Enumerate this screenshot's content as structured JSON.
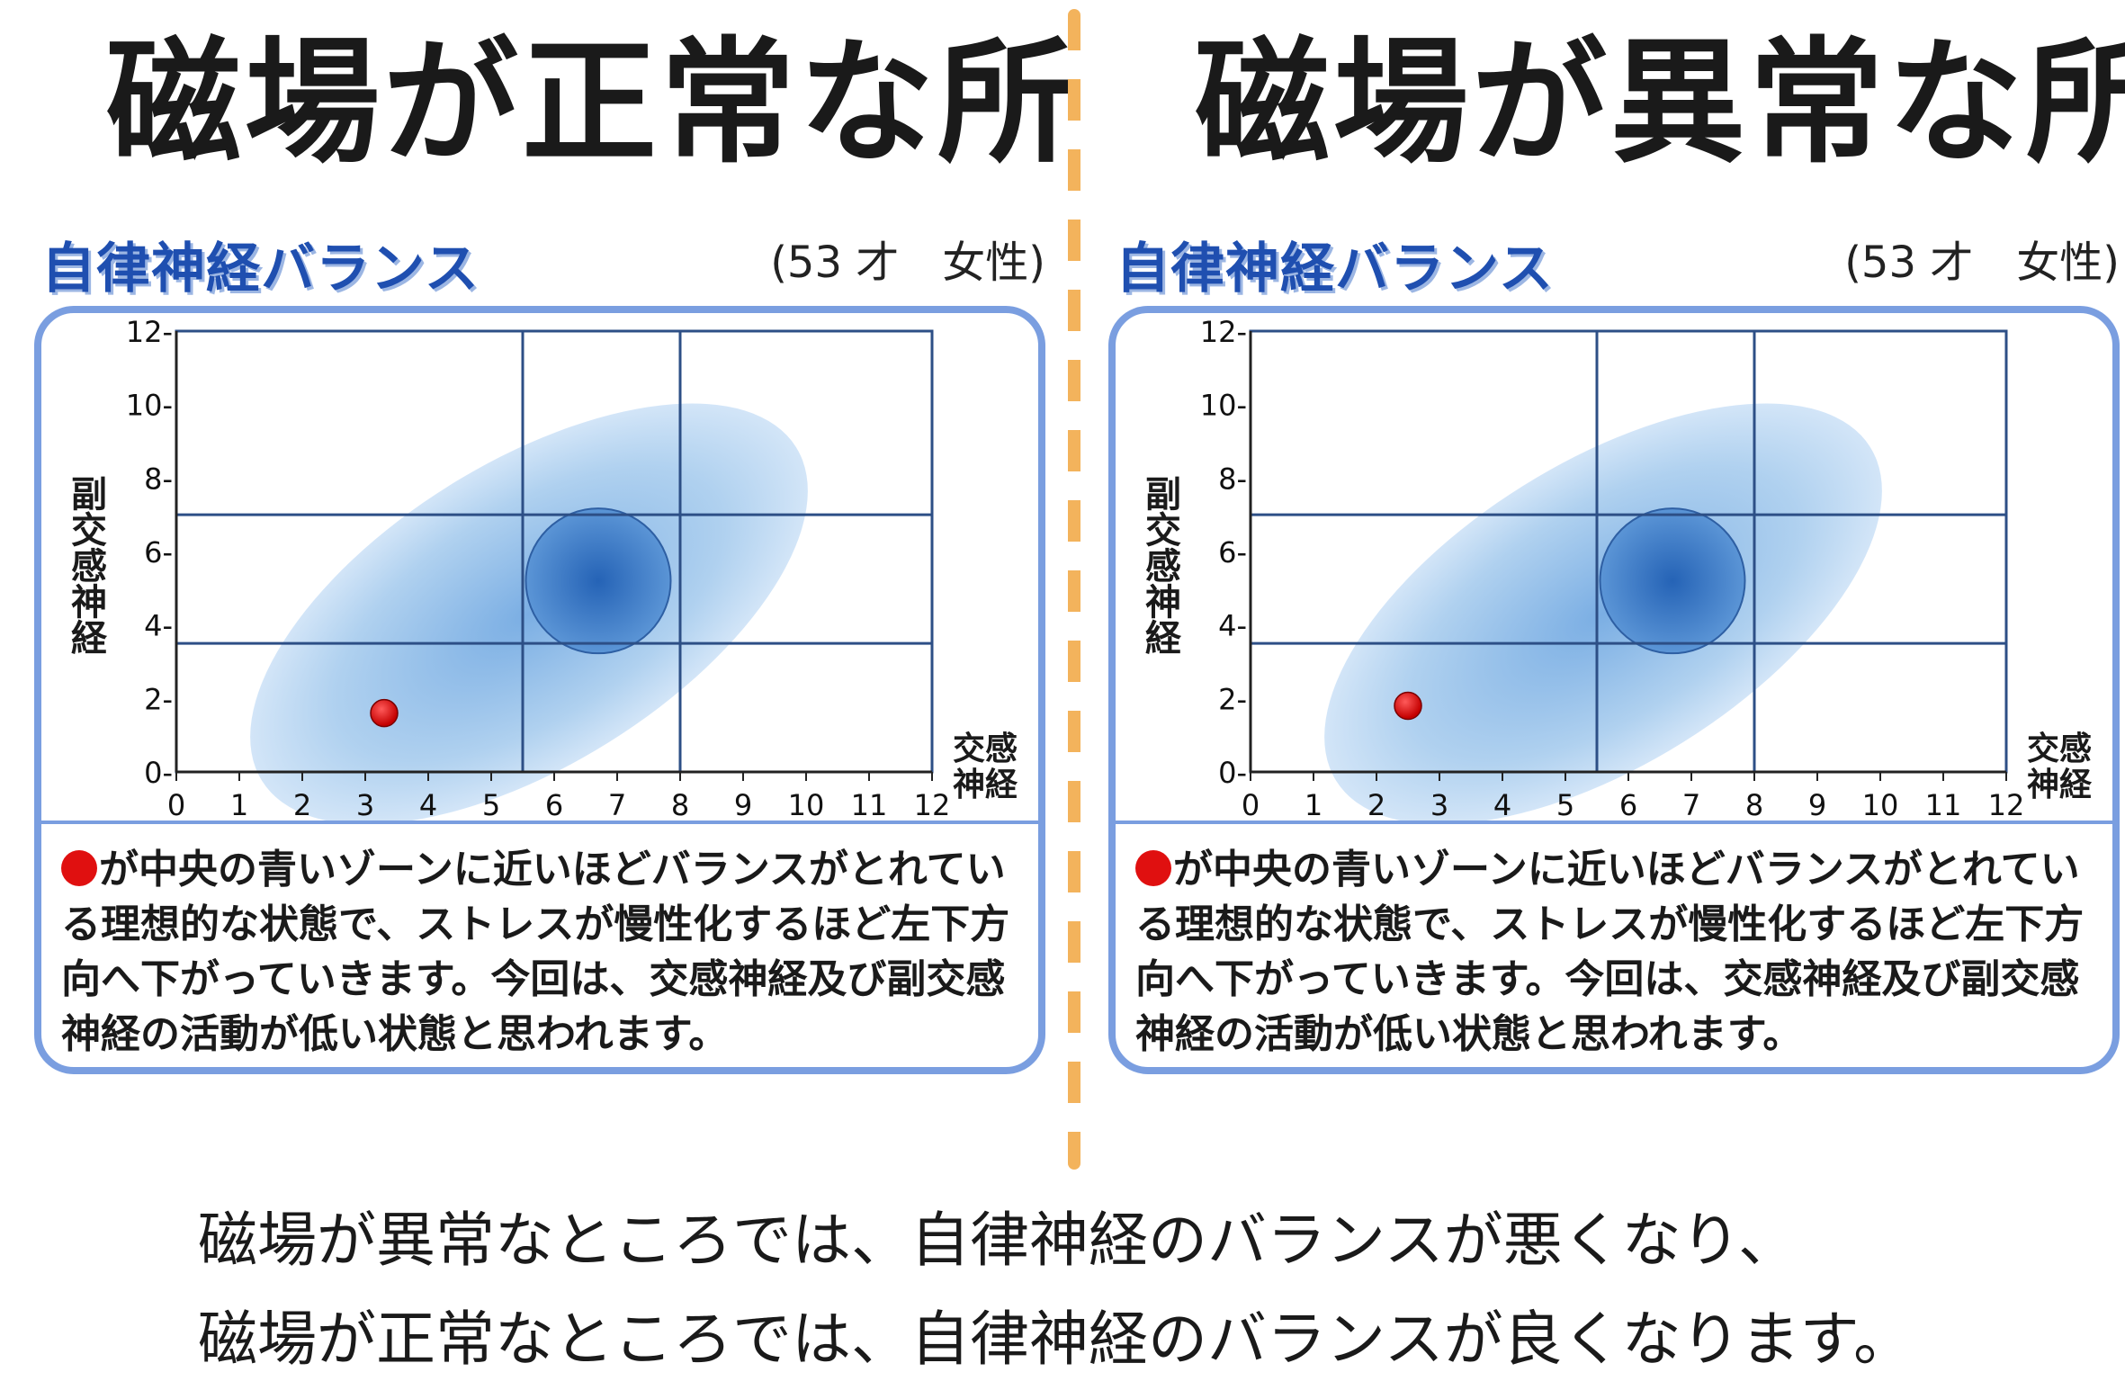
{
  "headings": {
    "left": "磁場が正常な所",
    "right": "磁場が異常な所"
  },
  "colors": {
    "divider": "#f3b35c",
    "frame": "#7a9ee0",
    "title": "#1f4fb0",
    "grid": "#2d4f86",
    "zone_outer": "#a9cdee",
    "zone_inner": "#3a78c8",
    "point": "#e01010"
  },
  "chart_data": [
    {
      "type": "scatter",
      "title": "自律神経バランス",
      "subtitle": "(53 才　女性)",
      "xlabel": "交感神経",
      "ylabel": "副交感神経",
      "xlim": [
        0,
        12
      ],
      "ylim": [
        0,
        12
      ],
      "xticks": [
        "0",
        "1",
        "2",
        "3",
        "4",
        "5",
        "6",
        "7",
        "8",
        "9",
        "10",
        "11",
        "12"
      ],
      "yticks": [
        "0-",
        "2-",
        "4-",
        "6-",
        "8-",
        "10-",
        "12-"
      ],
      "grid_x": [
        5.5,
        8
      ],
      "grid_y": [
        3.5,
        7
      ],
      "zone": {
        "outer": {
          "cx": 5.6,
          "cy": 4.3,
          "rx": 5.0,
          "ry": 2.4,
          "angle": 32
        },
        "inner": {
          "cx": 6.7,
          "cy": 5.2,
          "r": 1.15
        }
      },
      "point": {
        "x": 3.3,
        "y": 1.6
      },
      "description": "が中央の青いゾーンに近いほどバランスがとれている理想的な状態で、ストレスが慢性化するほど左下方向へ下がっていきます。今回は、交感神経及び副交感神経の活動が低い状態と思われます。"
    },
    {
      "type": "scatter",
      "title": "自律神経バランス",
      "subtitle": "(53 才　女性)",
      "xlabel": "交感神経",
      "ylabel": "副交感神経",
      "xlim": [
        0,
        12
      ],
      "ylim": [
        0,
        12
      ],
      "xticks": [
        "0",
        "1",
        "2",
        "3",
        "4",
        "5",
        "6",
        "7",
        "8",
        "9",
        "10",
        "11",
        "12"
      ],
      "yticks": [
        "0-",
        "2-",
        "4-",
        "6-",
        "8-",
        "10-",
        "12-"
      ],
      "grid_x": [
        5.5,
        8
      ],
      "grid_y": [
        3.5,
        7
      ],
      "zone": {
        "outer": {
          "cx": 5.6,
          "cy": 4.3,
          "rx": 5.0,
          "ry": 2.4,
          "angle": 32
        },
        "inner": {
          "cx": 6.7,
          "cy": 5.2,
          "r": 1.15
        }
      },
      "point": {
        "x": 2.5,
        "y": 1.8
      },
      "description": "が中央の青いゾーンに近いほどバランスがとれている理想的な状態で、ストレスが慢性化するほど左下方向へ下がっていきます。今回は、交感神経及び副交感神経の活動が低い状態と思われます。"
    }
  ],
  "footer": {
    "line1": "磁場が異常なところでは、自律神経のバランスが悪くなり、",
    "line2": "磁場が正常なところでは、自律神経のバランスが良くなります。"
  }
}
